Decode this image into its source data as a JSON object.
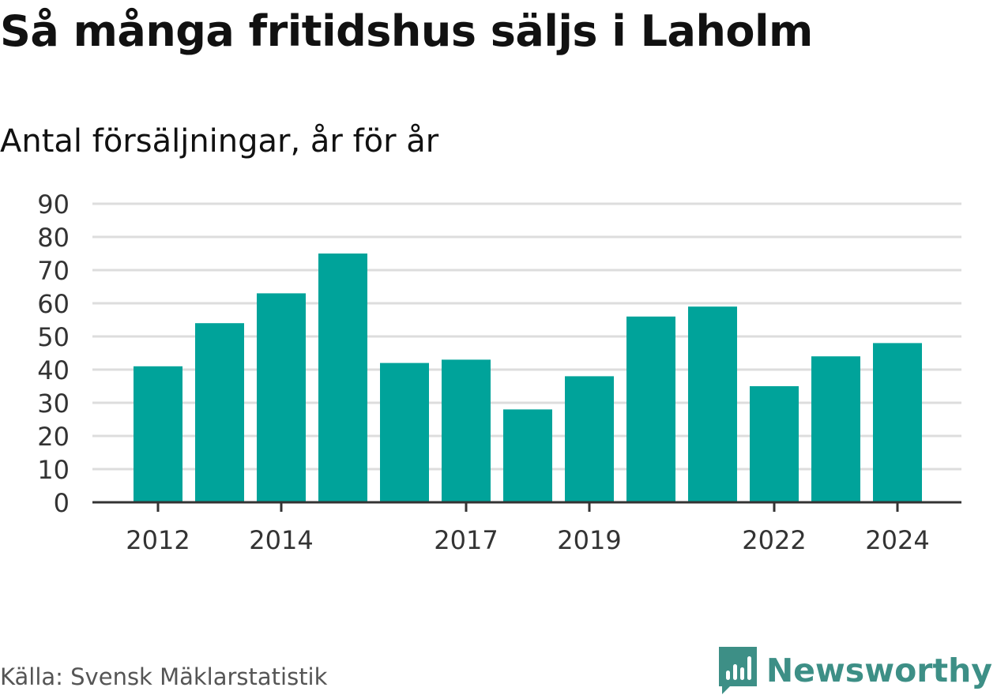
{
  "title": "Så många fritidshus säljs i Laholm",
  "subtitle": "Antal försäljningar, år för år",
  "source": "Källa: Svensk Mäklarstatistik",
  "brand": {
    "name": "Newsworthy",
    "icon": "newsworthy-logo-icon",
    "color": "#3d8f86"
  },
  "colors": {
    "bar": "#00a39a",
    "grid": "#dddddd",
    "axis": "#333333",
    "text": "#111111",
    "source": "#555555"
  },
  "chart_data": {
    "type": "bar",
    "categories": [
      "2012",
      "2013",
      "2014",
      "2015",
      "2016",
      "2017",
      "2018",
      "2019",
      "2020",
      "2021",
      "2022",
      "2023",
      "2024"
    ],
    "series": [
      {
        "values": [
          41,
          54,
          63,
          75,
          42,
          43,
          28,
          38,
          56,
          59,
          35,
          44,
          48
        ]
      }
    ],
    "x_tick_labels": [
      "2012",
      "2014",
      "2017",
      "2019",
      "2022",
      "2024"
    ],
    "y_ticks": [
      0,
      10,
      20,
      30,
      40,
      50,
      60,
      70,
      80,
      90
    ],
    "ylim": [
      0,
      90
    ],
    "grid": true,
    "legend": "none"
  }
}
